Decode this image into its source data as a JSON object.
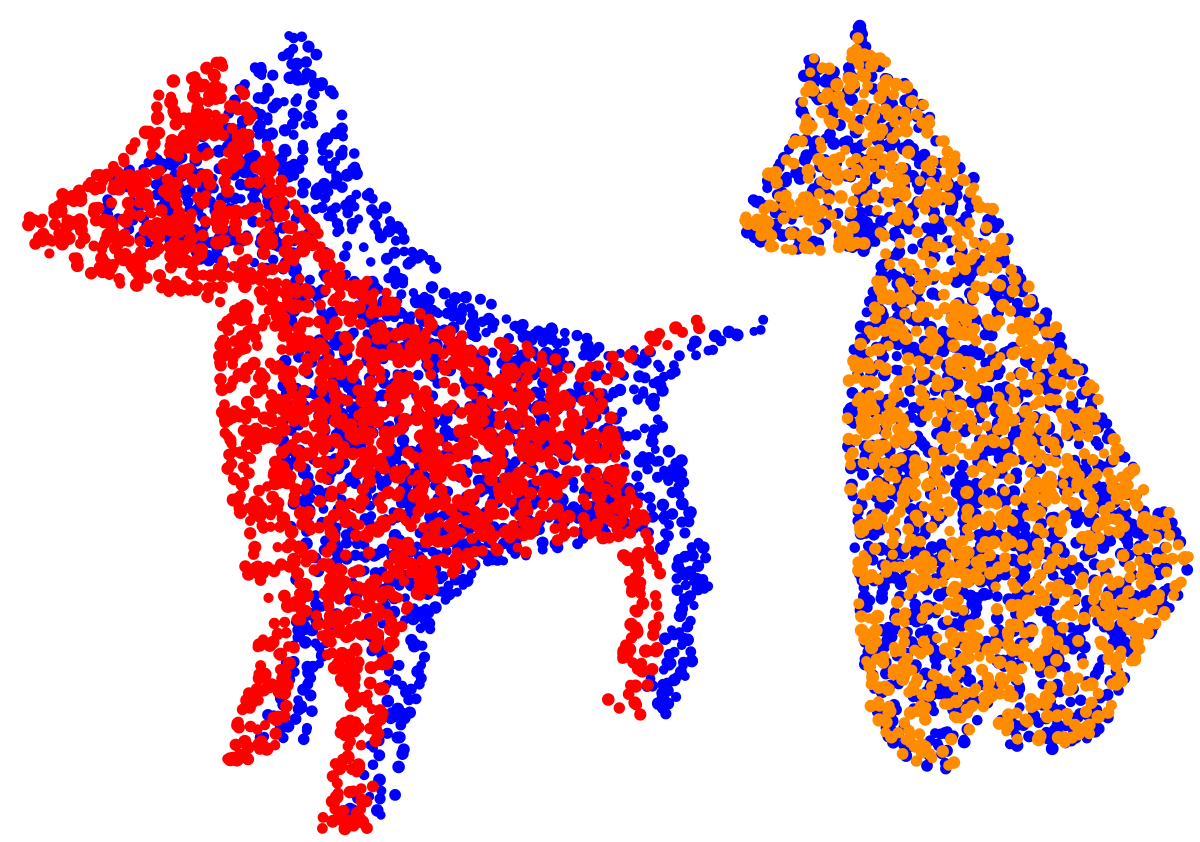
{
  "panels": [
    {
      "id": "left",
      "description_tag": "overlap-before-alignment",
      "clouds": [
        {
          "role": "target",
          "color": "#0000ff",
          "shape": "standing-dog",
          "dx": 75,
          "dy": 0
        },
        {
          "role": "source",
          "color": "#ff0000",
          "shape": "standing-dog",
          "dx": 0,
          "dy": 0
        }
      ]
    },
    {
      "id": "right",
      "description_tag": "overlap-after-alignment",
      "clouds": [
        {
          "role": "target",
          "color": "#0000ff",
          "shape": "sitting-dog"
        },
        {
          "role": "aligned-source",
          "color": "#ff8c00",
          "shape": "sitting-dog"
        }
      ]
    }
  ]
}
